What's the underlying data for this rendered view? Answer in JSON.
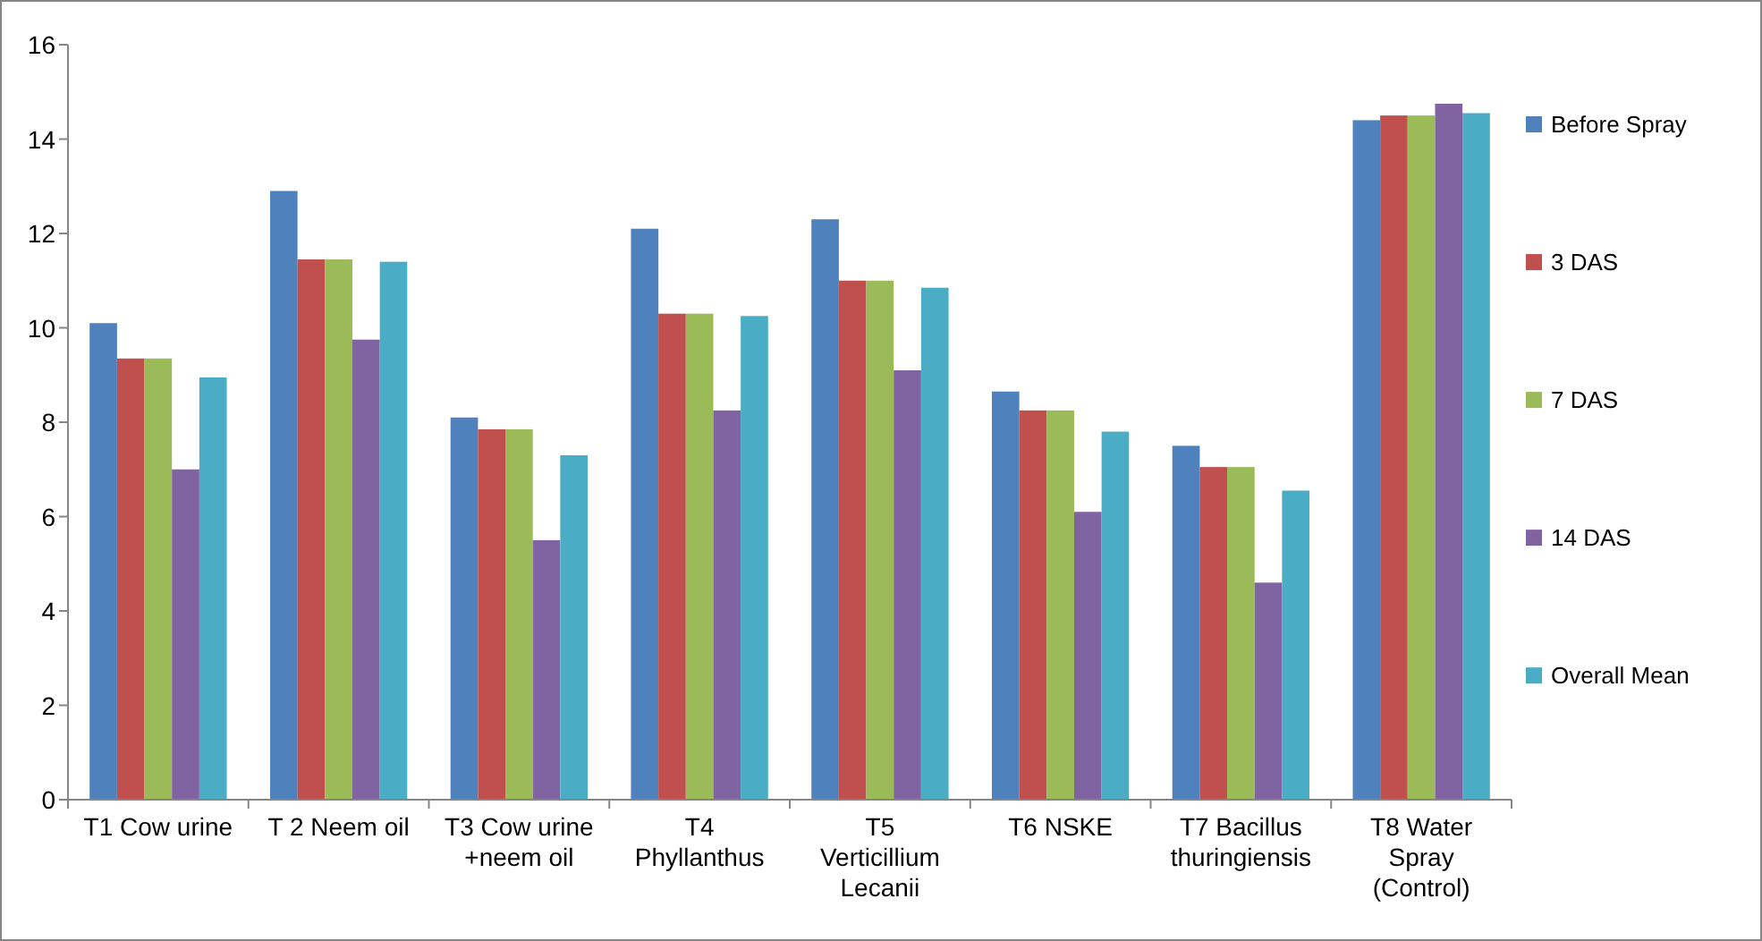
{
  "chart_data": {
    "type": "bar",
    "categories": [
      "T1 Cow urine",
      "T 2 Neem oil",
      "T3 Cow urine +neem oil",
      "T4 Phyllanthus",
      "T5 Verticillium Lecanii",
      "T6 NSKE",
      "T7 Bacillus thuringiensis",
      "T8 Water Spray (Control)"
    ],
    "series": [
      {
        "name": "Before Spray",
        "color": "#4f81bd",
        "values": [
          10.1,
          12.9,
          8.1,
          12.1,
          12.3,
          8.65,
          7.5,
          14.4
        ]
      },
      {
        "name": "3 DAS",
        "color": "#c0504d",
        "values": [
          9.35,
          11.45,
          7.85,
          10.3,
          11.0,
          8.25,
          7.05,
          14.5
        ]
      },
      {
        "name": "7 DAS",
        "color": "#9bbb59",
        "values": [
          9.35,
          11.45,
          7.85,
          10.3,
          11.0,
          8.25,
          7.05,
          14.5
        ]
      },
      {
        "name": "14 DAS",
        "color": "#8064a2",
        "values": [
          7.0,
          9.75,
          5.5,
          8.25,
          9.1,
          6.1,
          4.6,
          14.75
        ]
      },
      {
        "name": "Overall Mean",
        "color": "#4bacc6",
        "values": [
          8.95,
          11.4,
          7.3,
          10.25,
          10.85,
          7.8,
          6.55,
          14.55
        ]
      }
    ],
    "ylim": [
      0,
      16
    ],
    "yticks": [
      0,
      2,
      4,
      6,
      8,
      10,
      12,
      14,
      16
    ],
    "grid": false,
    "legend": "right"
  }
}
